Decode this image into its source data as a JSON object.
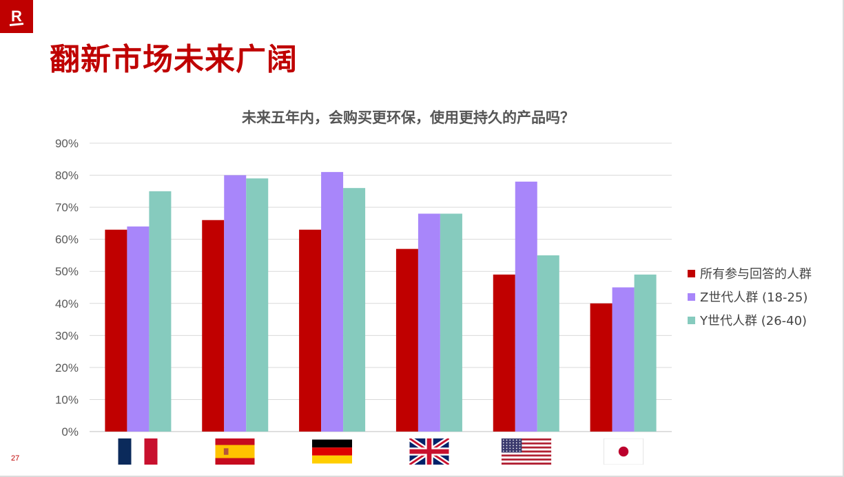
{
  "page": {
    "logo_text": "R",
    "title": "翻新市场未来广阔",
    "page_number": "27"
  },
  "chart_data": {
    "type": "bar",
    "title": "未来五年内，会购买更环保，使用更持久的产品吗？",
    "xlabel": "",
    "ylabel": "",
    "categories": [
      "France",
      "Spain",
      "Germany",
      "United Kingdom",
      "United States",
      "Japan"
    ],
    "category_icons": [
      "flag-france",
      "flag-spain",
      "flag-germany",
      "flag-uk",
      "flag-usa",
      "flag-japan"
    ],
    "ylim": [
      0,
      90
    ],
    "yticks": [
      0,
      10,
      20,
      30,
      40,
      50,
      60,
      70,
      80,
      90
    ],
    "tick_labels": [
      "0%",
      "10%",
      "20%",
      "30%",
      "40%",
      "50%",
      "60%",
      "70%",
      "80%",
      "90%"
    ],
    "grid": true,
    "legend_position": "right",
    "series": [
      {
        "name": "所有参与回答的人群",
        "color": "#c00000",
        "values": [
          63,
          66,
          63,
          57,
          49,
          40
        ]
      },
      {
        "name": "Z世代人群 (18-25)",
        "color": "#a886fa",
        "values": [
          64,
          80,
          81,
          68,
          78,
          45
        ]
      },
      {
        "name": "Y世代人群 (26-40)",
        "color": "#86cbbe",
        "values": [
          75,
          79,
          76,
          68,
          55,
          49
        ]
      }
    ]
  }
}
